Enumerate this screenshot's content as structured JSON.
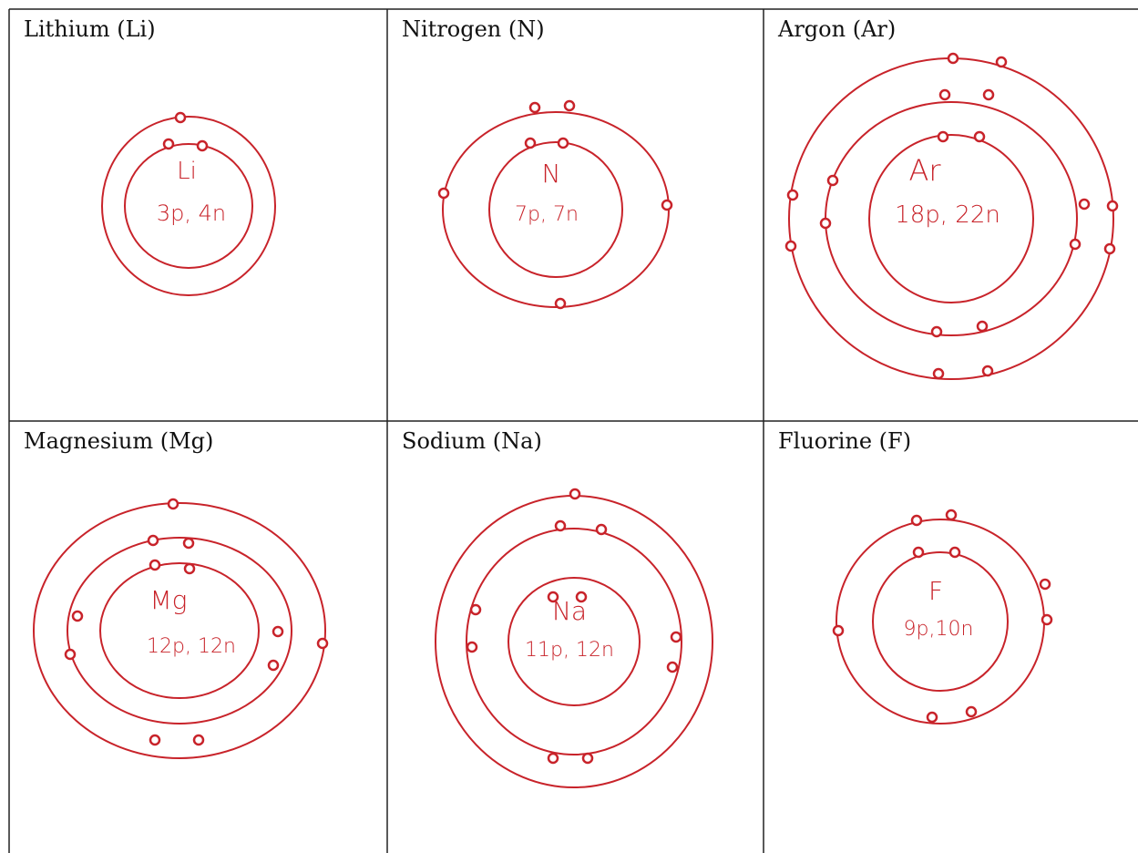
{
  "cells": [
    {
      "title": "Lithium (Li)",
      "symbol": "Li",
      "composition": "3p, 4n"
    },
    {
      "title": "Nitrogen (N)",
      "symbol": "N",
      "composition": "7p, 7n"
    },
    {
      "title": "Argon (Ar)",
      "symbol": "Ar",
      "composition": "18p, 22n"
    },
    {
      "title": "Magnesium (Mg)",
      "symbol": "Mg",
      "composition": "12p, 12n"
    },
    {
      "title": "Sodium (Na)",
      "symbol": "Na",
      "composition": "11p, 12n"
    },
    {
      "title": "Fluorine (F)",
      "symbol": "F",
      "composition": "9p,10n"
    }
  ]
}
